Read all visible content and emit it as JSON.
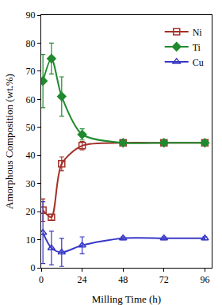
{
  "chart_data": {
    "type": "line",
    "x_label": "Milling Time (h)",
    "y_label": "Amorphous Composition (wt.%)",
    "x": [
      1,
      6,
      12,
      24,
      48,
      72,
      96
    ],
    "series": [
      {
        "name": "Ni",
        "color": "#a3302a",
        "marker": "square-open",
        "line_style": "solid",
        "values": [
          20.5,
          18,
          37,
          43.5,
          44.5,
          44.5,
          44.5
        ],
        "errors": [
          4,
          1,
          2.5,
          1.5,
          0.5,
          0.5,
          0.5
        ]
      },
      {
        "name": "Ti",
        "color": "#1f8a2e",
        "marker": "diamond",
        "line_style": "solid",
        "values": [
          66.5,
          74.5,
          61,
          47.5,
          44.5,
          44.5,
          44.5
        ],
        "errors": [
          9.5,
          5.5,
          7,
          2,
          0.5,
          0.5,
          0.5
        ]
      },
      {
        "name": "Cu",
        "color": "#3838c8",
        "marker": "triangle-up-open",
        "line_style": "solid",
        "values": [
          12.5,
          7,
          5.5,
          8,
          10.5,
          10.5,
          10.5
        ],
        "errors": [
          11,
          6,
          5,
          3,
          0.5,
          0.5,
          0.5
        ]
      }
    ],
    "xlim": [
      0,
      100
    ],
    "xticks": [
      0,
      24,
      48,
      72,
      96
    ],
    "ylim": [
      0,
      90
    ],
    "yticks": [
      0,
      10,
      20,
      30,
      40,
      50,
      60,
      70,
      80,
      90
    ],
    "grid": false,
    "legend": "top right"
  }
}
